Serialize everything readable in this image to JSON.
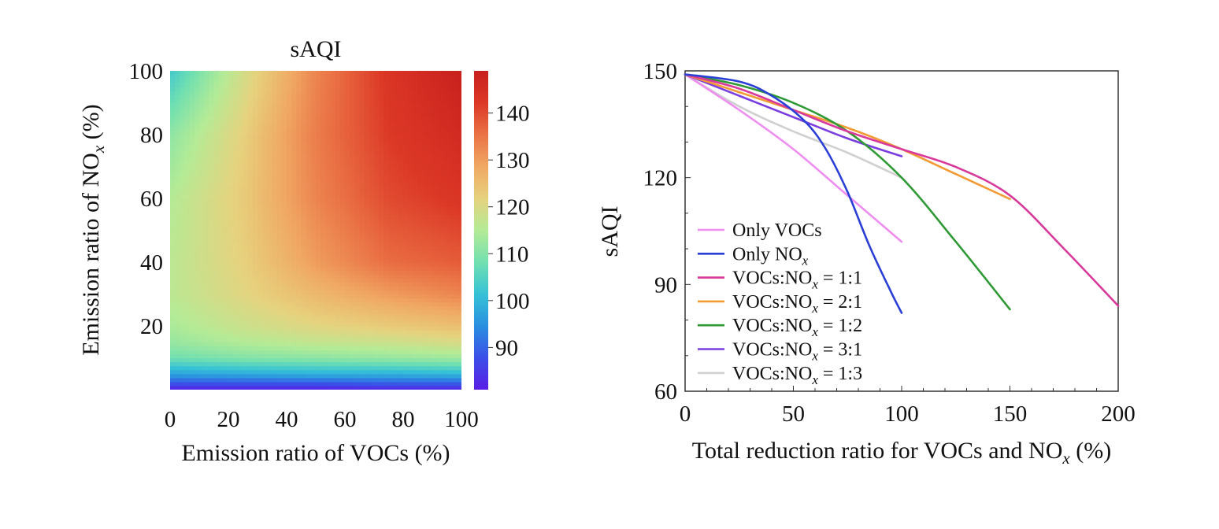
{
  "chart_data": [
    {
      "type": "heatmap",
      "title": "sAQI",
      "xlabel": "Emission ratio of VOCs (%)",
      "ylabel": "Emission ratio of NOx (%)",
      "ylabel_main": "Emission ratio of NO",
      "ylabel_sub": "x",
      "ylabel_tail": " (%)",
      "xlim": [
        0,
        100
      ],
      "ylim": [
        0,
        100
      ],
      "xticks": [
        0,
        20,
        40,
        60,
        80,
        100
      ],
      "yticks": [
        20,
        40,
        60,
        80,
        100
      ],
      "colorbar": {
        "min": 81,
        "max": 149,
        "ticks": [
          90,
          100,
          110,
          120,
          130,
          140
        ]
      },
      "colormap": [
        "#5a1ee6",
        "#3b4fe8",
        "#2a8fe0",
        "#36c2d6",
        "#72e0b0",
        "#b4eb96",
        "#e6d27e",
        "#f0a864",
        "#ea7245",
        "#dc3826",
        "#c8201e"
      ],
      "grid_x": [
        0,
        25,
        50,
        75,
        100
      ],
      "grid_y": [
        0,
        2,
        5,
        10,
        15,
        20,
        30,
        40,
        60,
        80,
        100
      ],
      "values": [
        [
          81,
          81,
          81,
          82,
          82
        ],
        [
          88,
          88,
          88,
          89,
          89
        ],
        [
          97,
          98,
          99,
          99,
          100
        ],
        [
          108,
          110,
          111,
          112,
          113
        ],
        [
          112,
          115,
          117,
          118,
          120
        ],
        [
          114,
          118,
          121,
          123,
          125
        ],
        [
          116,
          121,
          126,
          130,
          133
        ],
        [
          116,
          122,
          130,
          136,
          138
        ],
        [
          115,
          123,
          133,
          140,
          143
        ],
        [
          111,
          122,
          134,
          142,
          146
        ],
        [
          103,
          119,
          133,
          143,
          149
        ]
      ]
    },
    {
      "type": "line",
      "xlabel": "Total reduction ratio for VOCs and NOx (%)",
      "xlabel_main": "Total reduction ratio for VOCs and NO",
      "xlabel_sub": "x",
      "xlabel_tail": " (%)",
      "ylabel": "sAQI",
      "xlim": [
        0,
        200
      ],
      "ylim": [
        60,
        150
      ],
      "xticks": [
        0,
        50,
        100,
        150,
        200
      ],
      "yticks": [
        60,
        90,
        120,
        150
      ],
      "legend_placement": "lower-left",
      "series": [
        {
          "name": "Only VOCs",
          "name_main": "Only VOCs",
          "name_sub": "",
          "name_tail": "",
          "color": "#ee8ef0",
          "x": [
            0,
            25,
            50,
            75,
            100
          ],
          "y": [
            149,
            139,
            128,
            115,
            102
          ]
        },
        {
          "name": "Only NOx",
          "name_main": "Only NO",
          "name_sub": "x",
          "name_tail": "",
          "color": "#2a3fd6",
          "x": [
            0,
            25,
            40,
            55,
            65,
            75,
            85,
            95,
            100
          ],
          "y": [
            149,
            147,
            143,
            136,
            128,
            116,
            101,
            88,
            82
          ]
        },
        {
          "name": "VOCs:NOx = 1:1",
          "name_main": "VOCs:NO",
          "name_sub": "x",
          "name_tail": " = 1:1",
          "color": "#d8399a",
          "x": [
            0,
            25,
            50,
            75,
            100,
            125,
            150,
            175,
            200
          ],
          "y": [
            149,
            145,
            139,
            133,
            128,
            123,
            115,
            100,
            84
          ]
        },
        {
          "name": "VOCs:NOx = 2:1",
          "name_main": "VOCs:NO",
          "name_sub": "x",
          "name_tail": " = 2:1",
          "color": "#f29a34",
          "x": [
            0,
            25,
            50,
            75,
            100,
            125,
            150
          ],
          "y": [
            149,
            144,
            139,
            134,
            128,
            121,
            114
          ]
        },
        {
          "name": "VOCs:NOx = 1:2",
          "name_main": "VOCs:NO",
          "name_sub": "x",
          "name_tail": " = 1:2",
          "color": "#2f9a35",
          "x": [
            0,
            25,
            50,
            75,
            100,
            125,
            150
          ],
          "y": [
            149,
            146,
            141,
            133,
            120,
            102,
            83
          ]
        },
        {
          "name": "VOCs:NOx = 3:1",
          "name_main": "VOCs:NO",
          "name_sub": "x",
          "name_tail": " = 3:1",
          "color": "#7a3ee0",
          "x": [
            0,
            25,
            50,
            75,
            100
          ],
          "y": [
            149,
            143,
            137,
            131,
            126
          ]
        },
        {
          "name": "VOCs:NOx = 1:3",
          "name_main": "VOCs:NO",
          "name_sub": "x",
          "name_tail": " = 1:3",
          "color": "#d0d0d0",
          "x": [
            0,
            25,
            50,
            75,
            100
          ],
          "y": [
            149,
            140,
            133,
            127,
            120
          ]
        }
      ]
    }
  ]
}
